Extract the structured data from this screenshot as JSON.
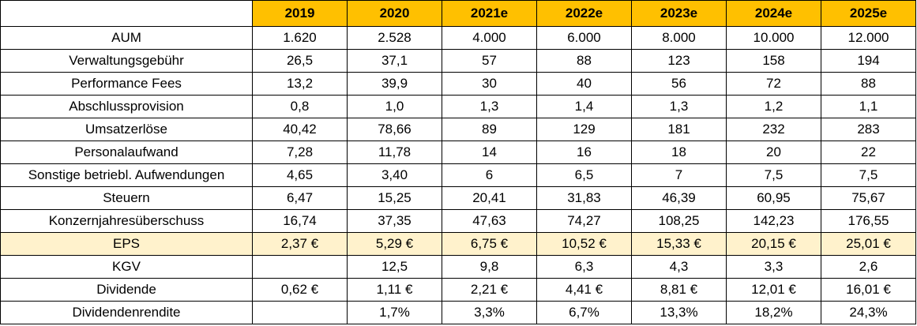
{
  "table": {
    "columns": [
      "2019",
      "2020",
      "2021e",
      "2022e",
      "2023e",
      "2024e",
      "2025e"
    ],
    "rows": [
      {
        "label": "AUM",
        "values": [
          "1.620",
          "2.528",
          "4.000",
          "6.000",
          "8.000",
          "10.000",
          "12.000"
        ]
      },
      {
        "label": "Verwaltungsgebühr",
        "values": [
          "26,5",
          "37,1",
          "57",
          "88",
          "123",
          "158",
          "194"
        ]
      },
      {
        "label": "Performance Fees",
        "values": [
          "13,2",
          "39,9",
          "30",
          "40",
          "56",
          "72",
          "88"
        ]
      },
      {
        "label": "Abschlussprovision",
        "values": [
          "0,8",
          "1,0",
          "1,3",
          "1,4",
          "1,3",
          "1,2",
          "1,1"
        ]
      },
      {
        "label": "Umsatzerlöse",
        "values": [
          "40,42",
          "78,66",
          "89",
          "129",
          "181",
          "232",
          "283"
        ]
      },
      {
        "label": "Personalaufwand",
        "values": [
          "7,28",
          "11,78",
          "14",
          "16",
          "18",
          "20",
          "22"
        ]
      },
      {
        "label": "Sonstige betriebl. Aufwendungen",
        "values": [
          "4,65",
          "3,40",
          "6",
          "6,5",
          "7",
          "7,5",
          "7,5"
        ]
      },
      {
        "label": "Steuern",
        "values": [
          "6,47",
          "15,25",
          "20,41",
          "31,83",
          "46,39",
          "60,95",
          "75,67"
        ]
      },
      {
        "label": "Konzernjahresüberschuss",
        "values": [
          "16,74",
          "37,35",
          "47,63",
          "74,27",
          "108,25",
          "142,23",
          "176,55"
        ]
      },
      {
        "label": "EPS",
        "values": [
          "2,37 €",
          "5,29 €",
          "6,75 €",
          "10,52 €",
          "15,33 €",
          "20,15 €",
          "25,01 €"
        ]
      },
      {
        "label": "KGV",
        "values": [
          null,
          "12,5",
          "9,8",
          "6,3",
          "4,3",
          "3,3",
          "2,6"
        ]
      },
      {
        "label": "Dividende",
        "values": [
          "0,62 €",
          "1,11 €",
          "2,21 €",
          "4,41 €",
          "8,81 €",
          "12,01 €",
          "16,01 €"
        ]
      },
      {
        "label": "Dividendenrendite",
        "values": [
          null,
          "1,7%",
          "3,3%",
          "6,7%",
          "13,3%",
          "18,2%",
          "24,3%"
        ]
      }
    ]
  }
}
